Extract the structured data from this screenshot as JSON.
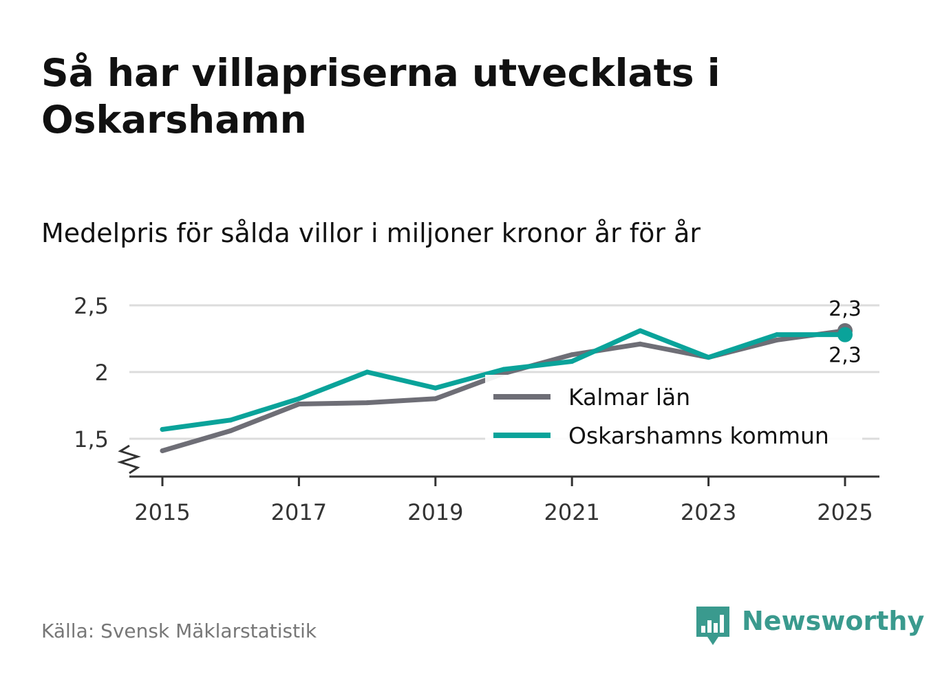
{
  "title": "Så har villapriserna utvecklats i Oskarshamn",
  "subtitle": "Medelpris för sålda villor i miljoner kronor år för år",
  "source": "Källa: Svensk Mäklarstatistik",
  "logo": {
    "name": "Newsworthy",
    "icon": "bar-chart-speech-bubble-icon"
  },
  "colors": {
    "kalmar": "#6e6e76",
    "oskarshamn": "#0aa39a",
    "grid": "#dcdcdc",
    "axis": "#333333",
    "logo": "#3a9a8e"
  },
  "chart_data": {
    "type": "line",
    "title": "Så har villapriserna utvecklats i Oskarshamn",
    "subtitle": "Medelpris för sålda villor i miljoner kronor år för år",
    "xlabel": "",
    "ylabel": "",
    "x": [
      2015,
      2016,
      2017,
      2018,
      2019,
      2020,
      2021,
      2022,
      2023,
      2024,
      2025
    ],
    "xticks": [
      "2015",
      "2017",
      "2019",
      "2021",
      "2023",
      "2025"
    ],
    "xticks_values": [
      2015,
      2017,
      2019,
      2021,
      2023,
      2025
    ],
    "yticks": [
      "1,5",
      "2",
      "2,5"
    ],
    "yticks_values": [
      1.5,
      2.0,
      2.5
    ],
    "ylim": [
      1.25,
      2.5
    ],
    "xlim": [
      2014.5,
      2025.5
    ],
    "grid": true,
    "y_axis_break": true,
    "legend_position": "bottom-right",
    "series": [
      {
        "name": "Kalmar län",
        "color_key": "kalmar",
        "values": [
          1.41,
          1.56,
          1.76,
          1.77,
          1.8,
          1.99,
          2.13,
          2.21,
          2.11,
          2.24,
          2.31
        ],
        "end_label": "2,3"
      },
      {
        "name": "Oskarshamns kommun",
        "color_key": "oskarshamn",
        "values": [
          1.57,
          1.64,
          1.8,
          2.0,
          1.88,
          2.02,
          2.08,
          2.31,
          2.11,
          2.28,
          2.28
        ],
        "end_label": "2,3"
      }
    ]
  }
}
